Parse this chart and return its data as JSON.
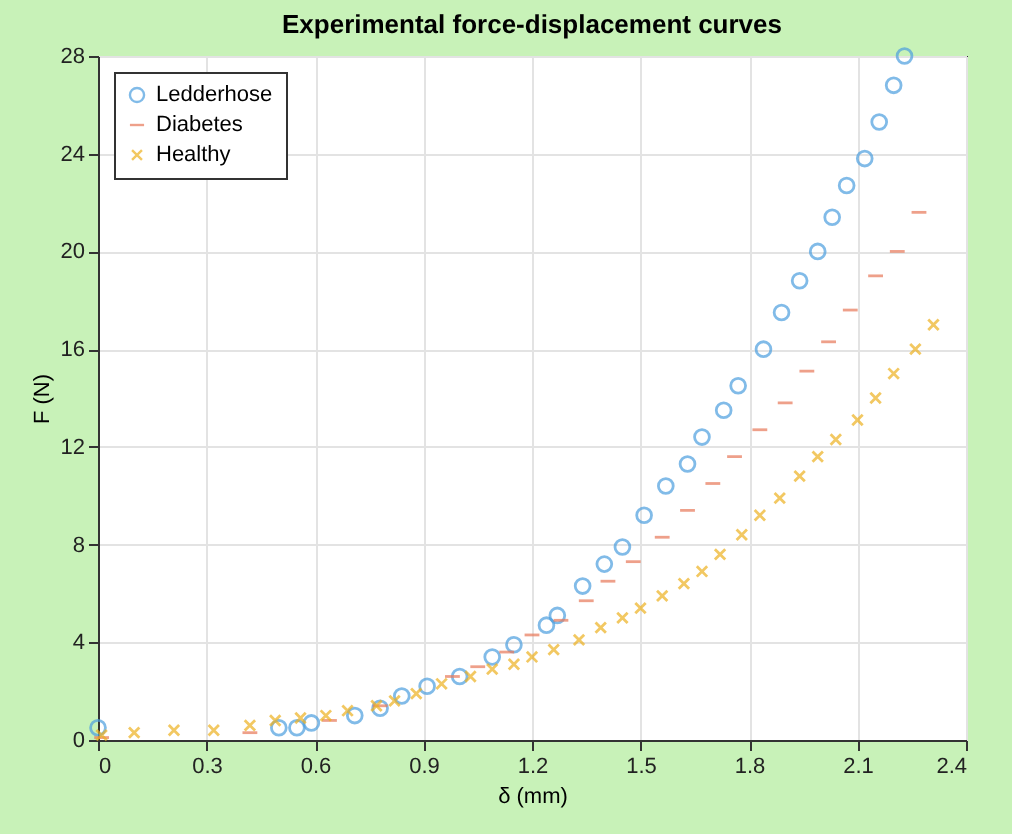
{
  "chart_data": {
    "type": "scatter",
    "title": "Experimental force-displacement curves",
    "xlabel": "δ (mm)",
    "ylabel": "F (N)",
    "xlim": [
      0,
      2.4
    ],
    "xticks": [
      0,
      0.3,
      0.6,
      0.9,
      1.2,
      1.5,
      1.8,
      2.1,
      2.4
    ],
    "ylim": [
      0,
      28
    ],
    "yticks": [
      0,
      4,
      8,
      12,
      16,
      20,
      24,
      28
    ],
    "grid": true,
    "legend": "top left",
    "series": [
      {
        "name": "Ledderhose",
        "color": "#4d9fdf",
        "marker": "circle",
        "x": [
          0,
          0.5,
          0.55,
          0.59,
          0.71,
          0.78,
          0.84,
          0.91,
          1.0,
          1.09,
          1.15,
          1.24,
          1.27,
          1.34,
          1.4,
          1.45,
          1.51,
          1.57,
          1.63,
          1.67,
          1.73,
          1.77,
          1.84,
          1.89,
          1.94,
          1.99,
          2.03,
          2.07,
          2.12,
          2.16,
          2.2,
          2.23
        ],
        "values": [
          0.5,
          0.5,
          0.5,
          0.7,
          1.0,
          1.3,
          1.8,
          2.2,
          2.6,
          3.4,
          3.9,
          4.7,
          5.1,
          6.3,
          7.2,
          7.9,
          9.2,
          10.4,
          11.3,
          12.4,
          13.5,
          14.5,
          16.0,
          17.5,
          18.8,
          20.0,
          21.4,
          22.7,
          23.8,
          25.3,
          26.8,
          28.0
        ]
      },
      {
        "name": "Diabetes",
        "color": "#e8795a",
        "x": [
          0.01,
          0.42,
          0.64,
          0.78,
          0.98,
          1.05,
          1.13,
          1.2,
          1.28,
          1.35,
          1.41,
          1.48,
          1.56,
          1.63,
          1.7,
          1.76,
          1.83,
          1.9,
          1.96,
          2.02,
          2.08,
          2.15,
          2.21,
          2.27
        ],
        "values": [
          0.1,
          0.3,
          0.8,
          1.4,
          2.6,
          3.0,
          3.6,
          4.3,
          4.9,
          5.7,
          6.5,
          7.3,
          8.3,
          9.4,
          10.5,
          11.6,
          12.7,
          13.8,
          15.1,
          16.3,
          17.6,
          19.0,
          20.0,
          21.6
        ]
      },
      {
        "name": "Healthy",
        "color": "#edb120",
        "marker": "cross",
        "x": [
          0.01,
          0.1,
          0.21,
          0.32,
          0.42,
          0.49,
          0.56,
          0.63,
          0.69,
          0.77,
          0.82,
          0.88,
          0.95,
          1.03,
          1.09,
          1.15,
          1.2,
          1.26,
          1.33,
          1.39,
          1.45,
          1.5,
          1.56,
          1.62,
          1.67,
          1.72,
          1.78,
          1.83,
          1.885,
          1.94,
          1.99,
          2.04,
          2.1,
          2.15,
          2.2,
          2.26,
          2.31
        ],
        "values": [
          0.2,
          0.3,
          0.4,
          0.4,
          0.6,
          0.8,
          0.9,
          1.0,
          1.2,
          1.4,
          1.6,
          1.9,
          2.3,
          2.6,
          2.9,
          3.1,
          3.4,
          3.7,
          4.1,
          4.6,
          5.0,
          5.4,
          5.9,
          6.4,
          6.9,
          7.6,
          8.4,
          9.2,
          9.9,
          10.8,
          11.6,
          12.3,
          13.1,
          14.0,
          15.0,
          16.0,
          17.0
        ]
      }
    ]
  }
}
